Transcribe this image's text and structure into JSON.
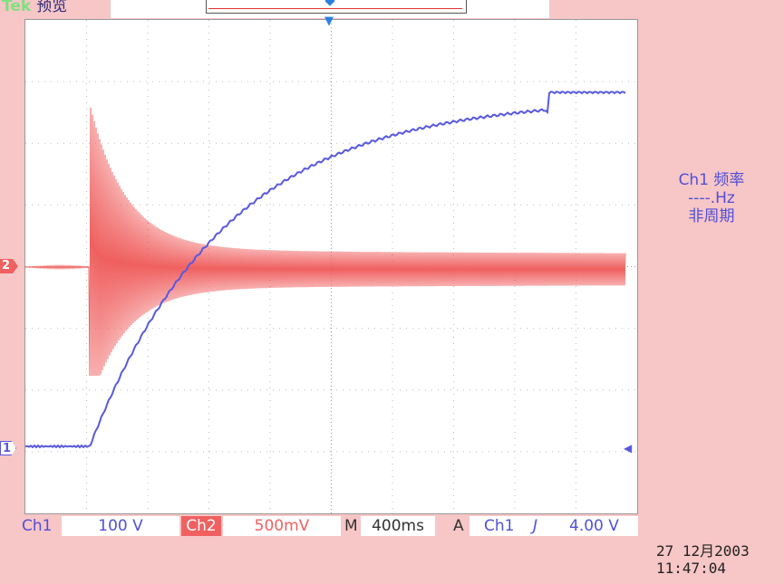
{
  "header": {
    "brand": "Tek",
    "mode": "预览"
  },
  "measurement": {
    "source": "Ch1 频率",
    "value": "----.Hz",
    "note": "非周期"
  },
  "channels": {
    "ch2_marker": "2",
    "ch1_marker": "1"
  },
  "status_bar": {
    "ch1_label": "Ch1",
    "ch1_scale": "100 V",
    "ch2_label": "Ch2",
    "ch2_scale": "500mV",
    "timebase_label": "M",
    "timebase": "400ms",
    "trigger_label": "A",
    "trigger_source": "Ch1",
    "trigger_slope_icon": "rising-edge-icon",
    "trigger_level": "4.00 V"
  },
  "datetime": {
    "date": "27 12月2003",
    "time": "11:47:04"
  },
  "colors": {
    "ch1": "#5858e0",
    "ch2": "#f06060",
    "background": "#f7c6c6"
  }
}
